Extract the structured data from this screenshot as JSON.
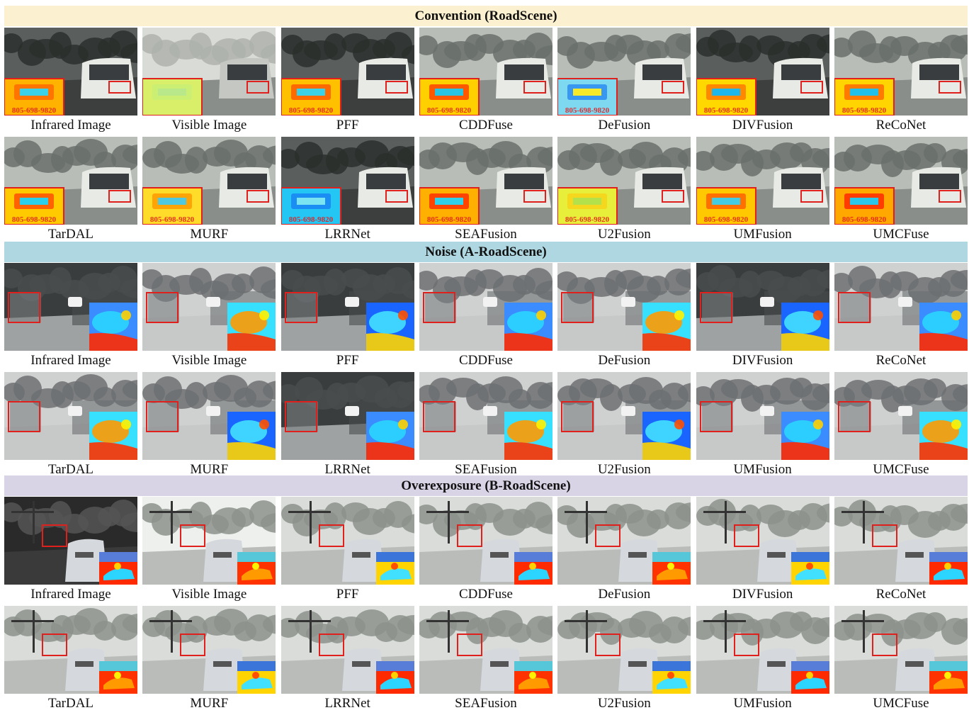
{
  "sections": [
    {
      "title": "Convention (RoadScene)",
      "banner_color": "#fbf0cf",
      "scene": "convention",
      "rows": [
        [
          "Infrared Image",
          "Visible Image",
          "PFF",
          "CDDFuse",
          "DeFusion",
          "DIVFusion",
          "ReCoNet"
        ],
        [
          "TarDAL",
          "MURF",
          "LRRNet",
          "SEAFusion",
          "U2Fusion",
          "UMFusion",
          "UMCFuse"
        ]
      ],
      "plate_text": "805-698-9820"
    },
    {
      "title": "Noise (A-RoadScene)",
      "banner_color": "#aed7e1",
      "scene": "noise",
      "rows": [
        [
          "Infrared Image",
          "Visible Image",
          "PFF",
          "CDDFuse",
          "DeFusion",
          "DIVFusion",
          "ReCoNet"
        ],
        [
          "TarDAL",
          "MURF",
          "LRRNet",
          "SEAFusion",
          "U2Fusion",
          "UMFusion",
          "UMCFuse"
        ]
      ]
    },
    {
      "title": "Overexposure (B-RoadScene)",
      "banner_color": "#d9d3e6",
      "scene": "overexposure",
      "rows": [
        [
          "Infrared Image",
          "Visible Image",
          "PFF",
          "CDDFuse",
          "DeFusion",
          "DIVFusion",
          "ReCoNet"
        ],
        [
          "TarDAL",
          "MURF",
          "LRRNet",
          "SEAFusion",
          "U2Fusion",
          "UMFusion",
          "UMCFuse"
        ]
      ]
    }
  ],
  "highlight_color": "#e0201c"
}
